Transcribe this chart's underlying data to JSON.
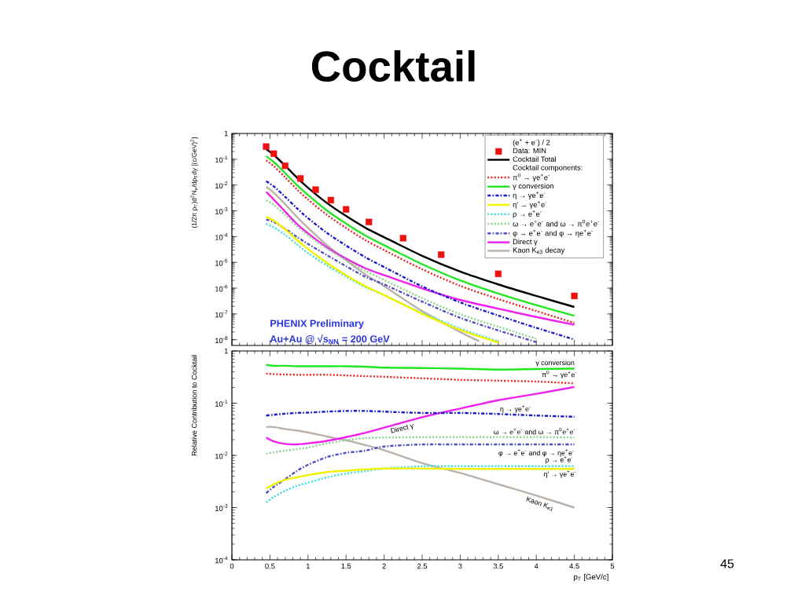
{
  "chart_data": [
    {
      "type": "line",
      "title": "Cocktail",
      "ylabel": "(1/2π p$_{T}$)d$^{2}$N$_{e}$/dp$_{T}$dy [(c/GeV)$^{2}$]",
      "legend_title": "(e$^{+}$ + e$^{-}$) / 2",
      "annotations": [
        "Cocktail components:",
        "PHENIX Preliminary",
        "Au+Au @ √s$_{NN}$ = 200 GeV"
      ],
      "x": [
        0.45,
        0.55,
        0.7,
        0.85,
        1,
        1.25,
        1.5,
        1.75,
        2,
        2.5,
        3,
        3.5,
        4,
        4.5
      ],
      "xlim": [
        0,
        5
      ],
      "xticks": [
        0,
        0.5,
        1,
        1.5,
        2,
        2.5,
        3,
        3.5,
        4,
        4.5,
        5
      ],
      "ylim": [
        6e-09,
        1
      ],
      "yticks": [
        {
          "value": 1e-08,
          "label": "10$^{-8}$"
        },
        {
          "value": 1e-07,
          "label": "10$^{-7}$"
        },
        {
          "value": 1e-06,
          "label": "10$^{-6}$"
        },
        {
          "value": 1e-05,
          "label": "10$^{-5}$"
        },
        {
          "value": 0.0001,
          "label": "10$^{-4}$"
        },
        {
          "value": 0.001,
          "label": "10$^{-3}$"
        },
        {
          "value": 0.01,
          "label": "10$^{-2}$"
        },
        {
          "value": 0.1,
          "label": "10$^{-1}$"
        },
        1
      ],
      "log": "y",
      "tick_labels": "y",
      "legend": "top right",
      "series": [
        {
          "name": "Data: MIN",
          "type": "scatter",
          "marker": "square",
          "color": "#ee1111",
          "x": [
            0.45,
            0.55,
            0.7,
            0.9,
            1.1,
            1.3,
            1.5,
            1.8,
            2.25,
            2.75,
            3.5,
            4.5
          ],
          "values": [
            0.31,
            0.165,
            0.056,
            0.018,
            0.0066,
            0.0026,
            0.00114,
            0.00037,
            8.7e-05,
            2e-05,
            3.6e-06,
            5e-07
          ]
        },
        {
          "name": "Cocktail Total",
          "color": "#000000",
          "line_style": "solid",
          "values": [
            0.245,
            0.148,
            0.056,
            0.02,
            0.0079,
            0.002,
            0.00063,
            0.000224,
            9.5e-05,
            1.8e-05,
            4.4e-06,
            1.4e-06,
            5e-07,
            1.86e-07
          ]
        },
        {
          "name": "π$^{0}$ → γe$^{+}$e$^{-}$",
          "color": "#ee2222",
          "line_style": "dotted",
          "values": [
            0.091,
            0.054,
            0.02,
            0.007,
            0.00275,
            0.00069,
            0.000216,
            7.4e-05,
            3e-05,
            5.4e-06,
            1.23e-06,
            3.8e-07,
            1.3e-07,
            4.5e-08
          ]
        },
        {
          "name": "γ conversion",
          "color": "#22e622",
          "line_style": "solid",
          "values": [
            0.132,
            0.078,
            0.029,
            0.0102,
            0.0041,
            0.00102,
            0.00032,
            0.000112,
            4.6e-05,
            8.5e-06,
            2e-06,
            6.2e-07,
            2.2e-07,
            8.5e-08
          ]
        },
        {
          "name": "η → γe$^{+}$e$^{-}$",
          "color": "#1a1acc",
          "line_style": "dashdot",
          "values": [
            0.0141,
            0.0089,
            0.0035,
            0.00129,
            0.00052,
            0.000138,
            4.5e-05,
            1.6e-05,
            6.6e-06,
            1.17e-06,
            2.8e-07,
            8.7e-08,
            2.9e-08,
            1.02e-08
          ]
        },
        {
          "name": "η' → γe$^{+}$e$^{-}$",
          "color": "#f2f200",
          "line_style": "solid",
          "values": [
            0.00058,
            0.00042,
            0.00019,
            7.6e-05,
            3.3e-05,
            9.5e-06,
            3.2e-06,
            1.2e-06,
            5.4e-07,
            1.02e-07,
            2.4e-08,
            7.8e-09,
            null,
            null
          ]
        },
        {
          "name": "ρ → e$^{+}$e$^{-}$",
          "color": "#33e0e0",
          "line_style": "dotted",
          "values": [
            0.00031,
            0.00023,
            0.000117,
            5.1e-05,
            2.3e-05,
            7.6e-06,
            2.8e-06,
            1.1e-06,
            5.4e-07,
            1.1e-07,
            2.7e-08,
            8.7e-09,
            null,
            null
          ]
        },
        {
          "name": "ω → e$^{+}$e$^{-}$ and ω → π$^{0}$e$^{+}$e$^{-}$",
          "color": "#88d488",
          "line_style": "dotted",
          "values": [
            0.0026,
            0.0017,
            0.00069,
            0.00026,
            0.000112,
            3.4e-05,
            1.23e-05,
            4.8e-06,
            2.1e-06,
            4.1e-07,
            9.8e-08,
            3.2e-08,
            1.1e-08,
            null
          ]
        },
        {
          "name": "φ → e$^{+}$e$^{-}$ and φ → ηe$^{+}$e$^{-}$",
          "color": "#5050c0",
          "line_style": "dashdot",
          "values": [
            0.00046,
            0.00037,
            0.0002,
            0.0001,
            5.2e-05,
            1.9e-05,
            7.1e-06,
            2.8e-06,
            1.4e-06,
            3e-07,
            7.1e-08,
            2.3e-08,
            8.1e-09,
            null
          ]
        },
        {
          "name": "Direct γ",
          "color": "#f020f0",
          "line_style": "solid",
          "values": [
            0.0054,
            0.00275,
            0.00093,
            0.00032,
            0.000135,
            3.8e-05,
            1.4e-05,
            6e-06,
            3.2e-06,
            9.8e-07,
            3.5e-07,
            1.6e-07,
            7.6e-08,
            3.8e-08
          ]
        },
        {
          "name": "Kaon K$_{e3}$ decay",
          "color": "#bab2aa",
          "line_style": "solid",
          "x": [
            0.45,
            0.55,
            0.7,
            0.85,
            1,
            1.25,
            1.5,
            1.75,
            2,
            2.5,
            3,
            3.25
          ],
          "values": [
            0.0085,
            0.0051,
            0.0018,
            0.0006,
            0.000219,
            4.6e-05,
            1.23e-05,
            3.5e-06,
            1.2e-06,
            1.3e-07,
            2e-08,
            8.7e-09
          ]
        }
      ]
    },
    {
      "type": "line",
      "xlabel": "p$_{T}$ [GeV/c]",
      "ylabel": "Relative Contribution to Cocktail",
      "annotations": [
        "45"
      ],
      "x": [
        0.45,
        0.55,
        0.7,
        0.85,
        1,
        1.25,
        1.5,
        1.75,
        2,
        2.5,
        3,
        3.5,
        4,
        4.5
      ],
      "xlim": [
        0,
        5
      ],
      "xticks": [
        0,
        0.5,
        1,
        1.5,
        2,
        2.5,
        3,
        3.5,
        4,
        4.5,
        5
      ],
      "ylim": [
        0.0001,
        1
      ],
      "yticks": [
        {
          "value": 0.0001,
          "label": "10$^{-4}$"
        },
        {
          "value": 0.001,
          "label": "10$^{-3}$"
        },
        {
          "value": 0.01,
          "label": "10$^{-2}$"
        },
        {
          "value": 0.1,
          "label": "10$^{-1}$"
        },
        1
      ],
      "log": "y",
      "legend": false,
      "series": [
        {
          "name": "π$^{0}$ → γe$^{+}$e$^{-}$",
          "color": "#ee2222",
          "line_style": "dotted",
          "values": [
            0.37,
            0.36,
            0.355,
            0.35,
            0.35,
            0.35,
            0.34,
            0.33,
            0.32,
            0.3,
            0.28,
            0.27,
            0.26,
            0.24
          ]
        },
        {
          "name": "γ conversion",
          "color": "#22e622",
          "line_style": "solid",
          "values": [
            0.54,
            0.52,
            0.52,
            0.51,
            0.51,
            0.51,
            0.51,
            0.5,
            0.48,
            0.47,
            0.46,
            0.44,
            0.45,
            0.46
          ]
        },
        {
          "name": "η → γe$^{+}$e$^{-}$",
          "color": "#1a1acc",
          "line_style": "dashdot",
          "values": [
            0.058,
            0.06,
            0.063,
            0.065,
            0.066,
            0.069,
            0.071,
            0.071,
            0.069,
            0.065,
            0.065,
            0.062,
            0.058,
            0.055
          ]
        },
        {
          "name": "η' → γe$^{+}$e$^{-}$",
          "color": "#f2f200",
          "line_style": "solid",
          "values": [
            0.0023,
            0.0028,
            0.0034,
            0.0038,
            0.0042,
            0.0048,
            0.0051,
            0.0054,
            0.0056,
            0.0056,
            0.0055,
            0.0055,
            0.0055,
            0.0055
          ]
        },
        {
          "name": "ρ → e$^{+}$e$^{-}$",
          "color": "#33e0e0",
          "line_style": "dotted",
          "values": [
            0.00126,
            0.0016,
            0.0021,
            0.0026,
            0.003,
            0.0038,
            0.0045,
            0.005,
            0.0056,
            0.0062,
            0.0062,
            0.0062,
            0.0062,
            0.0062
          ]
        },
        {
          "name": "ω → e$^{+}$e$^{-}$ and ω → π$^{0}$e$^{+}$e$^{-}$",
          "color": "#88d488",
          "line_style": "dotted",
          "values": [
            0.0107,
            0.0115,
            0.0123,
            0.0132,
            0.0141,
            0.017,
            0.0195,
            0.0214,
            0.022,
            0.0224,
            0.0224,
            0.0224,
            0.0224,
            0.022
          ]
        },
        {
          "name": "φ → e$^{+}$e$^{-}$ and φ → ηe$^{+}$e$^{-}$",
          "color": "#5050c0",
          "line_style": "dashdot",
          "values": [
            0.0019,
            0.0025,
            0.0035,
            0.005,
            0.0066,
            0.0093,
            0.0112,
            0.0123,
            0.0148,
            0.0162,
            0.0162,
            0.0162,
            0.0162,
            0.0162
          ]
        },
        {
          "name": "Direct γ",
          "color": "#f020f0",
          "line_style": "solid",
          "values": [
            0.022,
            0.0186,
            0.0166,
            0.0162,
            0.017,
            0.019,
            0.0224,
            0.027,
            0.034,
            0.054,
            0.079,
            0.114,
            0.151,
            0.204
          ]
        },
        {
          "name": "Kaon K$_{e3}$",
          "color": "#bab2aa",
          "line_style": "solid",
          "values": [
            0.035,
            0.035,
            0.032,
            0.03,
            0.0275,
            0.023,
            0.0195,
            0.0158,
            0.0126,
            0.0071,
            0.0046,
            0.0028,
            0.0017,
            0.001
          ]
        }
      ]
    }
  ]
}
